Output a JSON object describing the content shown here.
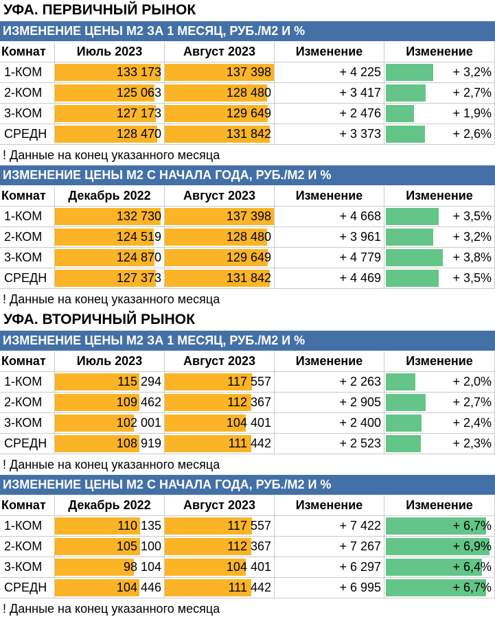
{
  "sections": [
    {
      "title": "УФА. ПЕРВИЧНЫЙ РЫНОК",
      "tables": [
        {
          "banner": "ИЗМЕНЕНИЕ ЦЕНЫ М2 ЗА 1 МЕСЯЦ, РУБ./М2 И %",
          "headers": [
            "Комнат",
            "Июль 2023",
            "Август 2023",
            "Изменение",
            "Изменение"
          ],
          "rows": [
            {
              "room": "1-КОМ",
              "a": "133 173",
              "b": "137 398",
              "chg": "+ 4 225",
              "pct": "+ 3,2%",
              "a_fill": 0.97,
              "b_fill": 1.0,
              "pct_fill": 0.45
            },
            {
              "room": "2-КОМ",
              "a": "125 063",
              "b": "128 480",
              "chg": "+ 3 417",
              "pct": "+ 2,7%",
              "a_fill": 0.91,
              "b_fill": 0.935,
              "pct_fill": 0.38
            },
            {
              "room": "3-КОМ",
              "a": "127 173",
              "b": "129 649",
              "chg": "+ 2 476",
              "pct": "+ 1,9%",
              "a_fill": 0.925,
              "b_fill": 0.945,
              "pct_fill": 0.27
            },
            {
              "room": "СРЕДН",
              "a": "128 470",
              "b": "131 842",
              "chg": "+ 3 373",
              "pct": "+ 2,6%",
              "a_fill": 0.935,
              "b_fill": 0.96,
              "pct_fill": 0.37
            }
          ],
          "note": "! Данные на конец указанного месяца"
        },
        {
          "banner": "ИЗМЕНЕНИЕ ЦЕНЫ М2 С НАЧАЛА ГОДА, РУБ./М2 И %",
          "headers": [
            "Комнат",
            "Декабрь 2022",
            "Август 2023",
            "Изменение",
            "Изменение"
          ],
          "rows": [
            {
              "room": "1-КОМ",
              "a": "132 730",
              "b": "137 398",
              "chg": "+ 4 668",
              "pct": "+ 3,5%",
              "a_fill": 0.97,
              "b_fill": 1.0,
              "pct_fill": 0.5
            },
            {
              "room": "2-КОМ",
              "a": "124 519",
              "b": "128 480",
              "chg": "+ 3 961",
              "pct": "+ 3,2%",
              "a_fill": 0.905,
              "b_fill": 0.935,
              "pct_fill": 0.45
            },
            {
              "room": "3-КОМ",
              "a": "124 870",
              "b": "129 649",
              "chg": "+ 4 779",
              "pct": "+ 3,8%",
              "a_fill": 0.91,
              "b_fill": 0.945,
              "pct_fill": 0.54
            },
            {
              "room": "СРЕДН",
              "a": "127 373",
              "b": "131 842",
              "chg": "+ 4 469",
              "pct": "+ 3,5%",
              "a_fill": 0.925,
              "b_fill": 0.96,
              "pct_fill": 0.5
            }
          ],
          "note": "! Данные на конец указанного месяца"
        }
      ]
    },
    {
      "title": "УФА. ВТОРИЧНЫЙ РЫНОК",
      "tables": [
        {
          "banner": "ИЗМЕНЕНИЕ ЦЕНЫ М2 ЗА 1 МЕСЯЦ, РУБ./М2 И %",
          "headers": [
            "Комнат",
            "Июль 2023",
            "Август 2023",
            "Изменение",
            "Изменение"
          ],
          "rows": [
            {
              "room": "1-КОМ",
              "a": "115 294",
              "b": "117 557",
              "chg": "+ 2 263",
              "pct": "+ 2,0%",
              "a_fill": 0.775,
              "b_fill": 0.8,
              "pct_fill": 0.28
            },
            {
              "room": "2-КОМ",
              "a": "109 462",
              "b": "112 367",
              "chg": "+ 2 905",
              "pct": "+ 2,7%",
              "a_fill": 0.775,
              "b_fill": 0.795,
              "pct_fill": 0.38
            },
            {
              "room": "3-КОМ",
              "a": "102 001",
              "b": "104 401",
              "chg": "+ 2 400",
              "pct": "+ 2,4%",
              "a_fill": 0.725,
              "b_fill": 0.745,
              "pct_fill": 0.34
            },
            {
              "room": "СРЕДН",
              "a": "108 919",
              "b": "111 442",
              "chg": "+ 2 523",
              "pct": "+ 2,3%",
              "a_fill": 0.775,
              "b_fill": 0.795,
              "pct_fill": 0.33
            }
          ],
          "note": "! Данные на конец указанного месяца"
        },
        {
          "banner": "ИЗМЕНЕНИЕ ЦЕНЫ М2 С НАЧАЛА ГОДА, РУБ./М2 И %",
          "headers": [
            "Комнат",
            "Декабрь 2022",
            "Август 2023",
            "Изменение",
            "Изменение"
          ],
          "rows": [
            {
              "room": "1-КОМ",
              "a": "110 135",
              "b": "117 557",
              "chg": "+ 7 422",
              "pct": "+ 6,7%",
              "a_fill": 0.78,
              "b_fill": 0.8,
              "pct_fill": 0.95
            },
            {
              "room": "2-КОМ",
              "a": "105 100",
              "b": "112 367",
              "chg": "+ 7 267",
              "pct": "+ 6,9%",
              "a_fill": 0.78,
              "b_fill": 0.795,
              "pct_fill": 0.98
            },
            {
              "room": "3-КОМ",
              "a": "98 104",
              "b": "104 401",
              "chg": "+ 6 297",
              "pct": "+ 6,4%",
              "a_fill": 0.725,
              "b_fill": 0.745,
              "pct_fill": 0.91
            },
            {
              "room": "СРЕДН",
              "a": "104 446",
              "b": "111 442",
              "chg": "+ 6 995",
              "pct": "+ 6,7%",
              "a_fill": 0.775,
              "b_fill": 0.795,
              "pct_fill": 0.95
            }
          ],
          "note": "! Данные на конец указанного месяца"
        }
      ]
    }
  ],
  "colors": {
    "banner": "#4470a8",
    "price_bar": "#fbb425",
    "change_bar": "#63c587"
  }
}
